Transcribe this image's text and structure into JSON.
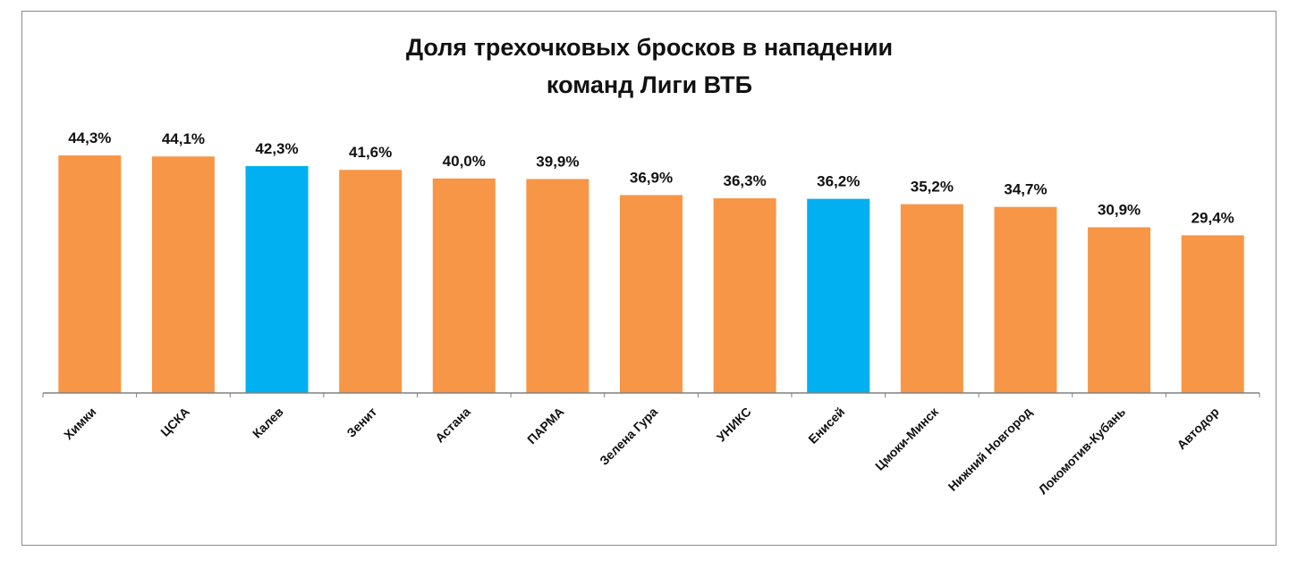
{
  "chart_data": {
    "type": "bar",
    "title": [
      "Доля трехочковых бросков в нападении",
      "команд Лиги ВТБ"
    ],
    "categories": [
      "Химки",
      "ЦСКА",
      "Калев",
      "Зенит",
      "Астана",
      "ПАРМА",
      "Зелена Гура",
      "УНИКС",
      "Енисей",
      "Цмоки-Минск",
      "Нижний Новгород",
      "Локомотив-Кубань",
      "Автодор"
    ],
    "values": [
      44.3,
      44.1,
      42.3,
      41.6,
      40.0,
      39.9,
      36.9,
      36.3,
      36.2,
      35.2,
      34.7,
      30.9,
      29.4
    ],
    "value_labels": [
      "44,3%",
      "44,1%",
      "42,3%",
      "41,6%",
      "40,0%",
      "39,9%",
      "36,9%",
      "36,3%",
      "36,2%",
      "35,2%",
      "34,7%",
      "30,9%",
      "29,4%"
    ],
    "highlighted": [
      "Калев",
      "Енисей"
    ],
    "ylim": [
      0,
      44.3
    ],
    "grid": false,
    "legend": "none",
    "colors": {
      "default_bar": "#F79646",
      "highlight_bar": "#00B0F0",
      "axis": "#808080",
      "text": "#111111"
    }
  }
}
